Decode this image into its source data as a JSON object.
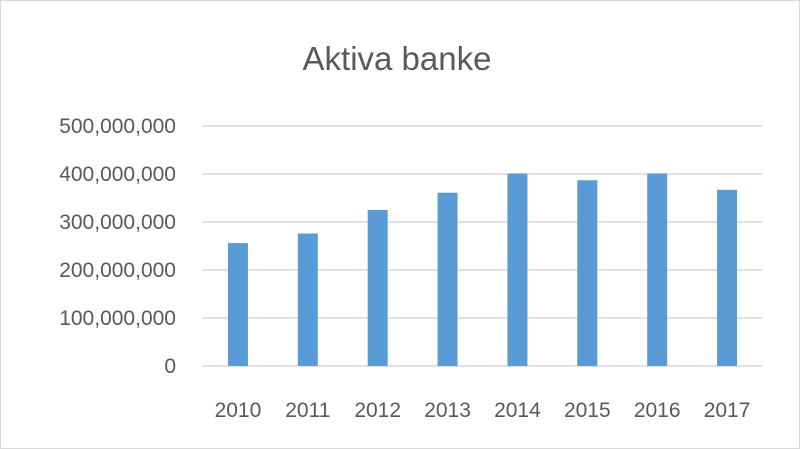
{
  "chart_data": {
    "type": "bar",
    "title": "Aktiva banke",
    "categories": [
      "2010",
      "2011",
      "2012",
      "2013",
      "2014",
      "2015",
      "2016",
      "2017"
    ],
    "values": [
      256000000,
      276000000,
      325000000,
      361000000,
      401000000,
      387000000,
      401000000,
      367000000
    ],
    "ylim": [
      0,
      500000000
    ],
    "yticks": [
      0,
      100000000,
      200000000,
      300000000,
      400000000,
      500000000
    ],
    "ytick_labels": [
      "0",
      "100,000,000",
      "200,000,000",
      "300,000,000",
      "400,000,000",
      "500,000,000"
    ],
    "grid": true,
    "legend": "none",
    "bar_color": "#5b9bd5",
    "grid_color": "#d9d9d9"
  }
}
